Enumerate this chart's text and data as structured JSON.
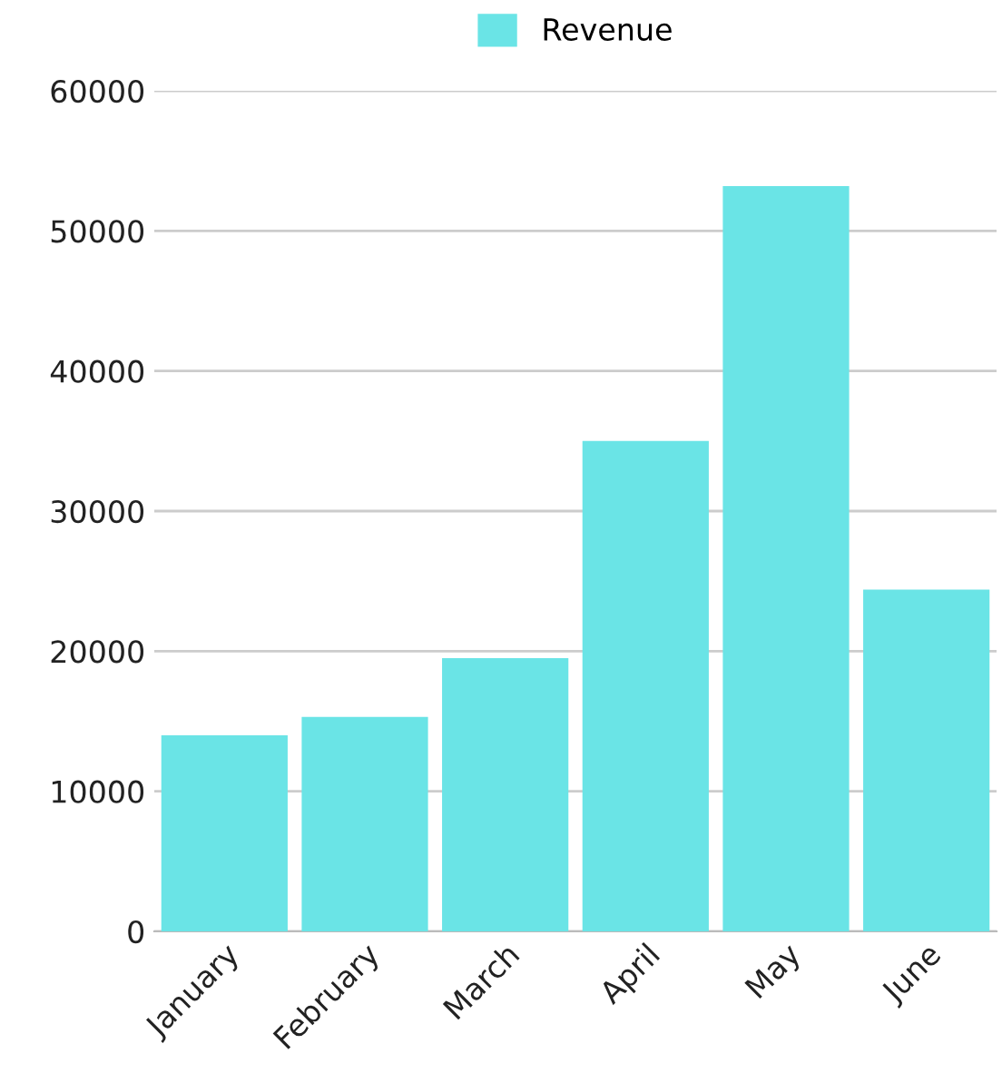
{
  "chart_data": {
    "type": "bar",
    "categories": [
      "January",
      "February",
      "March",
      "April",
      "May",
      "June"
    ],
    "series": [
      {
        "name": "Revenue",
        "color": "#6ae4e6",
        "values": [
          14000,
          15300,
          19500,
          35000,
          53200,
          24400
        ]
      }
    ],
    "ylim": [
      0,
      60000
    ],
    "yticks": [
      0,
      10000,
      20000,
      30000,
      40000,
      50000,
      60000
    ],
    "grid": "y",
    "legend": "top"
  }
}
